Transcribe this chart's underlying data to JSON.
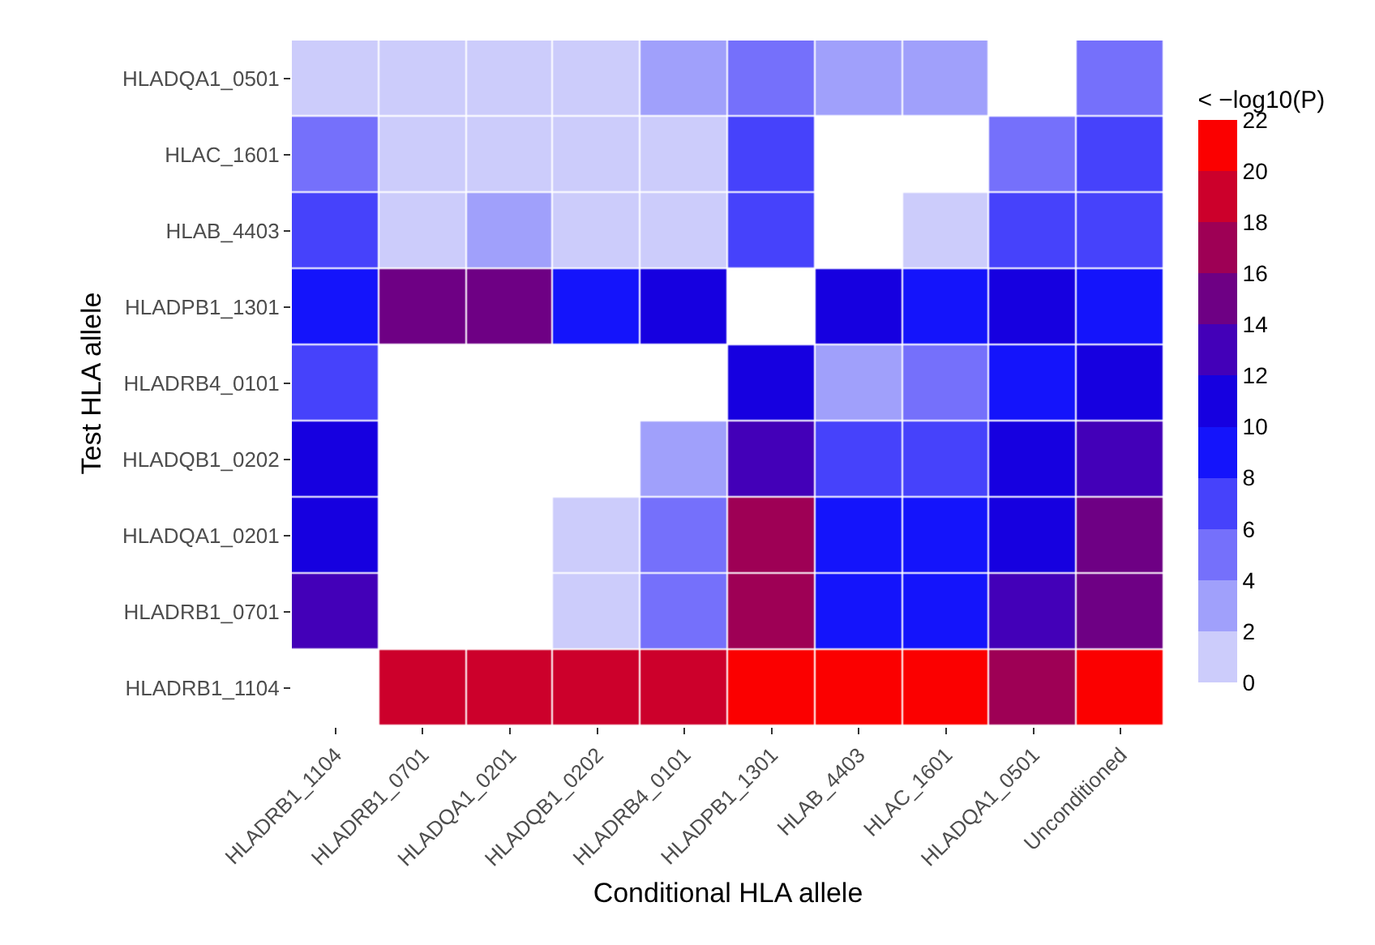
{
  "chart_data": {
    "type": "heatmap",
    "xlabel": "Conditional HLA allele",
    "ylabel": "Test HLA allele",
    "clabel": "< −log10(P)",
    "categories": [
      "HLADRB1_1104",
      "HLADRB1_0701",
      "HLADQA1_0201",
      "HLADQB1_0202",
      "HLADRB4_0101",
      "HLADPB1_1301",
      "HLAB_4403",
      "HLAC_1601",
      "HLADQA1_0501",
      "Unconditioned"
    ],
    "y_categories": [
      "HLADQA1_0501",
      "HLAC_1601",
      "HLAB_4403",
      "HLADPB1_1301",
      "HLADRB4_0101",
      "HLADQB1_0202",
      "HLADQA1_0201",
      "HLADRB1_0701",
      "HLADRB1_1104"
    ],
    "cells": [
      [
        1,
        1,
        1,
        1,
        3,
        5,
        3,
        3,
        null,
        5
      ],
      [
        5,
        1,
        1,
        1,
        1,
        7,
        null,
        null,
        5,
        7
      ],
      [
        7,
        1,
        3,
        1,
        1,
        7,
        null,
        1,
        7,
        7
      ],
      [
        9,
        15,
        15,
        9,
        11,
        null,
        11,
        9,
        11,
        9
      ],
      [
        7,
        null,
        null,
        null,
        null,
        11,
        3,
        5,
        9,
        11
      ],
      [
        11,
        null,
        null,
        null,
        3,
        13,
        7,
        7,
        11,
        13
      ],
      [
        11,
        null,
        null,
        1,
        5,
        17,
        9,
        9,
        11,
        15
      ],
      [
        13,
        null,
        null,
        1,
        5,
        17,
        9,
        9,
        13,
        15
      ],
      [
        null,
        19,
        19,
        19,
        19,
        21,
        21,
        21,
        17,
        21
      ]
    ],
    "colors": [
      "#ccccfb",
      "#a0a0fb",
      "#7570fb",
      "#4642fb",
      "#1414fb",
      "#1600e0",
      "#4300b8",
      "#6e0084",
      "#9e0055",
      "#cc002b",
      "#fb0000"
    ],
    "clim": [
      0,
      22
    ],
    "cticks": [
      0,
      2,
      4,
      6,
      8,
      10,
      12,
      14,
      16,
      18,
      20,
      22
    ]
  }
}
